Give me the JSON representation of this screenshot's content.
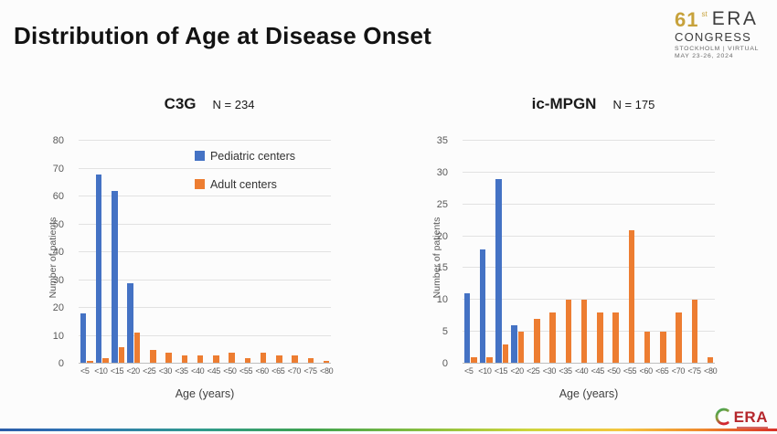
{
  "slide": {
    "title": "Distribution of Age at Disease Onset",
    "congress_logo": {
      "number": "61",
      "suffix": "st",
      "org": "ERA",
      "name": "CONGRESS",
      "location": "STOCKHOLM | VIRTUAL",
      "dates": "MAY 23-26, 2024"
    },
    "footer_logo_text": "ERA"
  },
  "colors": {
    "pediatric": "#4472C4",
    "adult": "#ED7D31"
  },
  "chart_data": [
    {
      "type": "bar",
      "title": "C3G",
      "n_label": "N = 234",
      "ylabel": "Number of patients",
      "xlabel": "Age (years)",
      "ylim": [
        0,
        80
      ],
      "ystep": 10,
      "grid": true,
      "legend_position": "inside-top",
      "show_legend": true,
      "categories": [
        "<5",
        "<10",
        "<15",
        "<20",
        "<25",
        "<30",
        "<35",
        "<40",
        "<45",
        "<50",
        "<55",
        "<60",
        "<65",
        "<70",
        "<75",
        "<80"
      ],
      "series": [
        {
          "name": "Pediatric centers",
          "color": "#4472C4",
          "values": [
            18,
            68,
            62,
            29,
            0,
            0,
            0,
            0,
            0,
            0,
            0,
            0,
            0,
            0,
            0,
            0
          ]
        },
        {
          "name": "Adult centers",
          "color": "#ED7D31",
          "values": [
            1,
            2,
            6,
            11,
            5,
            4,
            3,
            3,
            3,
            4,
            2,
            4,
            3,
            3,
            2,
            1
          ]
        }
      ]
    },
    {
      "type": "bar",
      "title": "ic-MPGN",
      "n_label": "N = 175",
      "ylabel": "Number of patients",
      "xlabel": "Age (years)",
      "ylim": [
        0,
        35
      ],
      "ystep": 5,
      "grid": true,
      "show_legend": false,
      "categories": [
        "<5",
        "<10",
        "<15",
        "<20",
        "<25",
        "<30",
        "<35",
        "<40",
        "<45",
        "<50",
        "<55",
        "<60",
        "<65",
        "<70",
        "<75",
        "<80"
      ],
      "series": [
        {
          "name": "Pediatric centers",
          "color": "#4472C4",
          "values": [
            11,
            18,
            29,
            6,
            0,
            0,
            0,
            0,
            0,
            0,
            0,
            0,
            0,
            0,
            0,
            0
          ]
        },
        {
          "name": "Adult centers",
          "color": "#ED7D31",
          "values": [
            1,
            1,
            3,
            5,
            7,
            8,
            10,
            10,
            8,
            8,
            21,
            5,
            5,
            8,
            10,
            1
          ]
        }
      ]
    }
  ]
}
